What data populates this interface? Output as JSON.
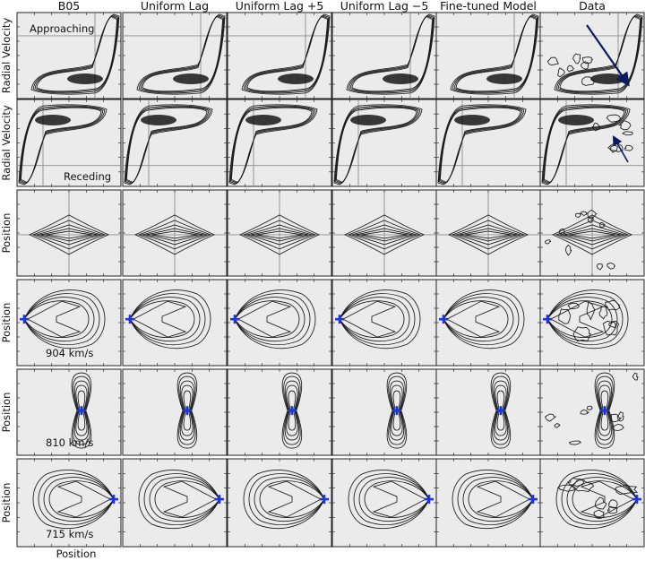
{
  "figure": {
    "columns": [
      {
        "id": "b05",
        "title": "B05"
      },
      {
        "id": "uniform",
        "title": "Uniform Lag"
      },
      {
        "id": "lag_plus",
        "title": "Uniform Lag +5"
      },
      {
        "id": "lag_minus",
        "title": "Uniform Lag −5"
      },
      {
        "id": "finetuned",
        "title": "Fine-tuned Model"
      },
      {
        "id": "data",
        "title": "Data"
      }
    ],
    "rows": [
      {
        "id": "approaching",
        "ylabel": "Radial Velocity",
        "note": "Approaching",
        "kind": "pv"
      },
      {
        "id": "receding",
        "ylabel": "Radial Velocity",
        "note": "Receding",
        "kind": "pv"
      },
      {
        "id": "minor_axis",
        "ylabel": "Position",
        "note": "",
        "kind": "cross"
      },
      {
        "id": "chan_904",
        "ylabel": "Position",
        "note": "904 km/s",
        "kind": "drop"
      },
      {
        "id": "chan_810",
        "ylabel": "Position",
        "note": "810 km/s",
        "kind": "butterfly"
      },
      {
        "id": "chan_715",
        "ylabel": "Position",
        "note": "715 km/s",
        "kind": "drop"
      }
    ],
    "xlabel": "Position",
    "marker_color": "#1f35e0",
    "arrow_color": "#0c1a5e",
    "panel_background": "#ebebeb"
  }
}
